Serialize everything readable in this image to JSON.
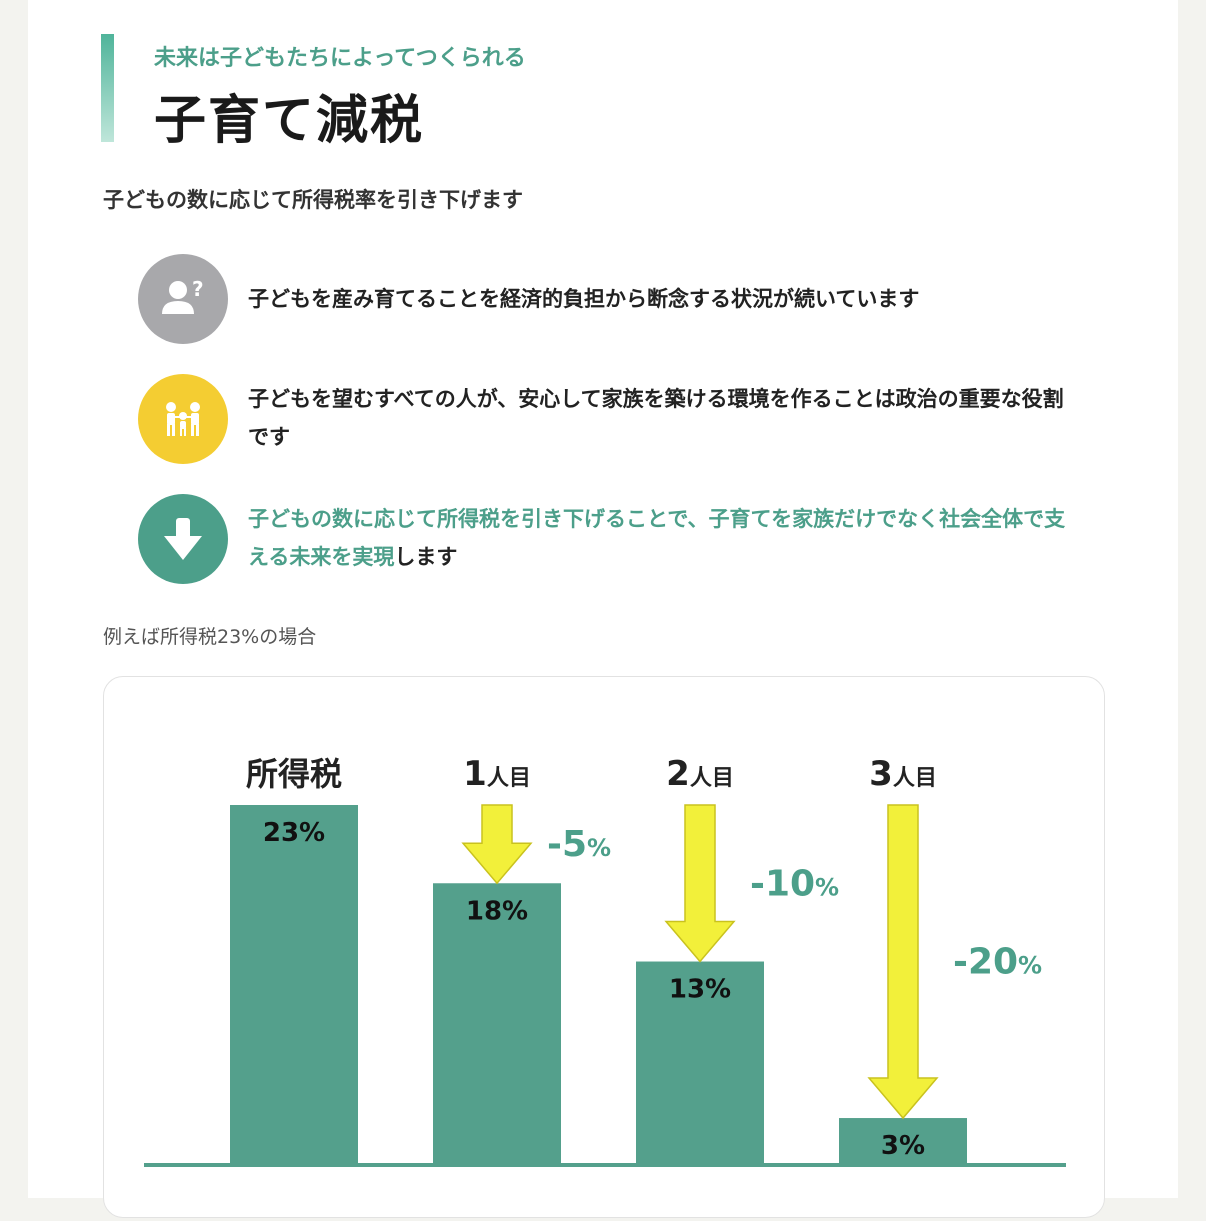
{
  "header": {
    "subtitle": "未来は子どもたちによってつくられる",
    "title": "子育て減税"
  },
  "lead": "子どもの数に応じて所得税率を引き下げます",
  "points": [
    {
      "icon": "question-person-icon",
      "color": "#a8a8ab",
      "text": "子どもを産み育てることを経済的負担から断念する状況が続いています"
    },
    {
      "icon": "family-icon",
      "color": "#f4cd32",
      "text": "子どもを望むすべての人が、安心して家族を築ける環境を作ることは政治の重要な役割です"
    },
    {
      "icon": "arrow-down-icon",
      "color": "#4c9f8a",
      "text_highlight": "子どもの数に応じて所得税を引き下げることで、子育てを家族だけでなく社会全体で支える未来を実現",
      "text_tail": "します"
    }
  ],
  "note": "例えば所得税23%の場合",
  "colors": {
    "bar": "#54a08c",
    "arrow": "#f2f03a",
    "accent_text": "#4c9f8a"
  },
  "chart_data": {
    "type": "bar",
    "categories": [
      {
        "num": "",
        "label": "所得税"
      },
      {
        "num": "1",
        "label": "人目"
      },
      {
        "num": "2",
        "label": "人目"
      },
      {
        "num": "3",
        "label": "人目"
      }
    ],
    "values": [
      23,
      18,
      13,
      3
    ],
    "value_labels": [
      "23%",
      "18%",
      "13%",
      "3%"
    ],
    "reductions": [
      {
        "num": "",
        "pct": ""
      },
      {
        "num": "-5",
        "pct": "%"
      },
      {
        "num": "-10",
        "pct": "%"
      },
      {
        "num": "-20",
        "pct": "%"
      }
    ],
    "ylim": [
      0,
      23
    ]
  }
}
